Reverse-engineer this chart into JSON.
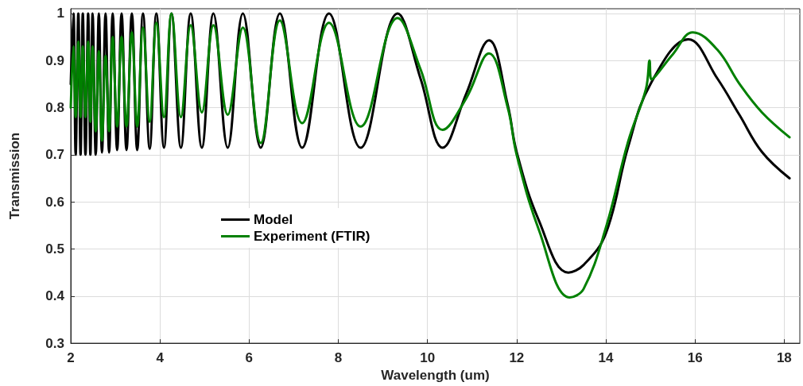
{
  "chart_data": {
    "type": "line",
    "xlabel": "Wavelength (um)",
    "ylabel": "Transmission",
    "xlim": [
      2,
      18.35
    ],
    "xticks": [
      2,
      4,
      6,
      8,
      10,
      12,
      14,
      16,
      18
    ],
    "ylim": [
      0.3,
      1.01
    ],
    "yticks": [
      0.3,
      0.4,
      0.5,
      0.6,
      0.7,
      0.8,
      0.9,
      1
    ],
    "grid": true,
    "legend": "center left",
    "marker": "none",
    "line_style": "solid",
    "series": [
      {
        "name": "Model",
        "color": "#000000",
        "x": [
          2.0,
          2.06,
          2.11,
          2.17,
          2.22,
          2.27,
          2.33,
          2.39,
          2.44,
          2.49,
          2.56,
          2.63,
          2.7,
          2.78,
          2.86,
          2.94,
          3.04,
          3.14,
          3.25,
          3.37,
          3.49,
          3.62,
          3.77,
          3.92,
          4.09,
          4.26,
          4.47,
          4.69,
          4.94,
          5.2,
          5.52,
          5.86,
          6.26,
          6.69,
          7.19,
          7.79,
          8.5,
          9.33,
          9.85,
          10.34,
          10.87,
          11.38,
          11.8,
          12.0,
          12.5,
          13.16,
          13.5,
          14.0,
          14.5,
          15.0,
          15.85,
          16.5,
          17.0,
          17.5,
          18.12
        ],
        "values": [
          0.85,
          1.0,
          0.7,
          1.0,
          0.7,
          1.0,
          0.7,
          1.0,
          0.7,
          1.0,
          0.7,
          1.0,
          0.705,
          1.0,
          0.705,
          1.0,
          0.71,
          1.0,
          0.71,
          1.0,
          0.71,
          1.0,
          0.713,
          1.0,
          0.715,
          1.0,
          0.715,
          1.0,
          0.715,
          1.0,
          0.715,
          1.0,
          0.715,
          1.0,
          0.715,
          1.0,
          0.715,
          1.0,
          0.86,
          0.715,
          0.83,
          0.943,
          0.806,
          0.706,
          0.56,
          0.45,
          0.466,
          0.533,
          0.717,
          0.85,
          0.945,
          0.862,
          0.784,
          0.706,
          0.65
        ]
      },
      {
        "name": "Experiment (FTIR)",
        "color": "#008000",
        "x": [
          2.0,
          2.06,
          2.11,
          2.17,
          2.22,
          2.27,
          2.33,
          2.39,
          2.44,
          2.49,
          2.56,
          2.63,
          2.7,
          2.78,
          2.86,
          2.94,
          3.04,
          3.14,
          3.25,
          3.37,
          3.49,
          3.62,
          3.77,
          3.92,
          4.09,
          4.26,
          4.47,
          4.69,
          4.94,
          5.2,
          5.52,
          5.86,
          6.26,
          6.69,
          7.19,
          7.79,
          8.5,
          9.33,
          9.85,
          10.34,
          10.87,
          11.38,
          11.8,
          12.0,
          12.5,
          13.19,
          13.5,
          14.0,
          14.5,
          14.9,
          14.98,
          15.02,
          15.5,
          15.95,
          16.5,
          17.0,
          17.5,
          18.12
        ],
        "values": [
          0.8,
          0.93,
          0.78,
          0.94,
          0.78,
          0.93,
          0.78,
          0.94,
          0.77,
          0.93,
          0.75,
          0.92,
          0.73,
          0.91,
          0.75,
          0.95,
          0.76,
          0.95,
          0.76,
          0.96,
          0.76,
          0.97,
          0.77,
          0.98,
          0.78,
          1.0,
          0.78,
          0.975,
          0.79,
          0.975,
          0.785,
          0.97,
          0.725,
          0.985,
          0.767,
          0.98,
          0.76,
          0.99,
          0.88,
          0.753,
          0.82,
          0.915,
          0.8,
          0.7,
          0.54,
          0.397,
          0.415,
          0.545,
          0.728,
          0.84,
          0.9,
          0.86,
          0.913,
          0.96,
          0.923,
          0.85,
          0.79,
          0.737
        ]
      }
    ]
  }
}
